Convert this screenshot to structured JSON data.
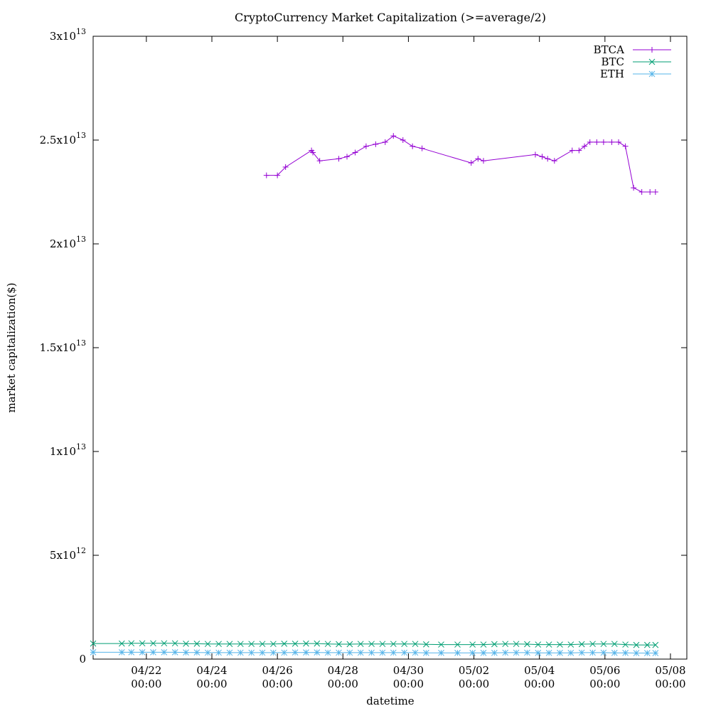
{
  "chart_data": {
    "type": "line",
    "title": "CryptoCurrency Market Capitalization (>=average/2)",
    "xlabel": "datetime",
    "ylabel": "market capitalization($)",
    "ylim": [
      0,
      30000000000000
    ],
    "xlim": [
      "2021-04-20 09:00",
      "2021-05-08 12:00"
    ],
    "grid": false,
    "legend_position": "top-right",
    "x_ticks": [
      {
        "value": "2021-04-22 00:00",
        "line1": "04/22",
        "line2": "00:00"
      },
      {
        "value": "2021-04-24 00:00",
        "line1": "04/24",
        "line2": "00:00"
      },
      {
        "value": "2021-04-26 00:00",
        "line1": "04/26",
        "line2": "00:00"
      },
      {
        "value": "2021-04-28 00:00",
        "line1": "04/28",
        "line2": "00:00"
      },
      {
        "value": "2021-04-30 00:00",
        "line1": "04/30",
        "line2": "00:00"
      },
      {
        "value": "2021-05-02 00:00",
        "line1": "05/02",
        "line2": "00:00"
      },
      {
        "value": "2021-05-04 00:00",
        "line1": "05/04",
        "line2": "00:00"
      },
      {
        "value": "2021-05-06 00:00",
        "line1": "05/06",
        "line2": "00:00"
      },
      {
        "value": "2021-05-08 00:00",
        "line1": "05/08",
        "line2": "00:00"
      }
    ],
    "y_ticks": [
      {
        "value": 0,
        "mant": "0",
        "exp": ""
      },
      {
        "value": 5000000000000,
        "mant": "5x10",
        "exp": "12"
      },
      {
        "value": 10000000000000,
        "mant": "1x10",
        "exp": "13"
      },
      {
        "value": 15000000000000,
        "mant": "1.5x10",
        "exp": "13"
      },
      {
        "value": 20000000000000,
        "mant": "2x10",
        "exp": "13"
      },
      {
        "value": 25000000000000,
        "mant": "2.5x10",
        "exp": "13"
      },
      {
        "value": 30000000000000,
        "mant": "3x10",
        "exp": "13"
      }
    ],
    "series": [
      {
        "name": "BTCA",
        "color": "#9400d3",
        "marker": "plus",
        "x": [
          "2021-04-25 16:00",
          "2021-04-26 00:00",
          "2021-04-26 06:00",
          "2021-04-27 01:00",
          "2021-04-27 02:00",
          "2021-04-27 07:00",
          "2021-04-27 21:00",
          "2021-04-28 03:00",
          "2021-04-28 09:00",
          "2021-04-28 17:00",
          "2021-04-29 00:00",
          "2021-04-29 07:00",
          "2021-04-29 13:00",
          "2021-04-29 20:00",
          "2021-04-30 03:00",
          "2021-04-30 10:00",
          "2021-05-01 22:00",
          "2021-05-02 03:00",
          "2021-05-02 07:00",
          "2021-05-03 21:00",
          "2021-05-04 02:00",
          "2021-05-04 06:00",
          "2021-05-04 11:00",
          "2021-05-05 00:00",
          "2021-05-05 05:00",
          "2021-05-05 09:00",
          "2021-05-05 13:00",
          "2021-05-05 18:00",
          "2021-05-05 23:00",
          "2021-05-06 05:00",
          "2021-05-06 10:00",
          "2021-05-06 15:00",
          "2021-05-06 21:00",
          "2021-05-07 03:00",
          "2021-05-07 09:00",
          "2021-05-07 13:00"
        ],
        "y": [
          23300000000000,
          23300000000000,
          23700000000000,
          24500000000000,
          24400000000000,
          24000000000000,
          24100000000000,
          24200000000000,
          24400000000000,
          24700000000000,
          24800000000000,
          24900000000000,
          25200000000000,
          25000000000000,
          24700000000000,
          24600000000000,
          23900000000000,
          24100000000000,
          24000000000000,
          24300000000000,
          24200000000000,
          24100000000000,
          24000000000000,
          24500000000000,
          24500000000000,
          24700000000000,
          24900000000000,
          24900000000000,
          24900000000000,
          24900000000000,
          24900000000000,
          24700000000000,
          22700000000000,
          22500000000000,
          22500000000000,
          22500000000000
        ]
      },
      {
        "name": "BTC",
        "color": "#009e73",
        "marker": "cross",
        "x": [
          "2021-04-20 09:00",
          "2021-04-21 06:00",
          "2021-04-21 13:00",
          "2021-04-21 21:00",
          "2021-04-22 05:00",
          "2021-04-22 13:00",
          "2021-04-22 21:00",
          "2021-04-23 05:00",
          "2021-04-23 13:00",
          "2021-04-23 21:00",
          "2021-04-24 05:00",
          "2021-04-24 13:00",
          "2021-04-24 21:00",
          "2021-04-25 05:00",
          "2021-04-25 13:00",
          "2021-04-25 21:00",
          "2021-04-26 05:00",
          "2021-04-26 13:00",
          "2021-04-26 21:00",
          "2021-04-27 05:00",
          "2021-04-27 13:00",
          "2021-04-27 21:00",
          "2021-04-28 05:00",
          "2021-04-28 13:00",
          "2021-04-28 21:00",
          "2021-04-29 05:00",
          "2021-04-29 13:00",
          "2021-04-29 21:00",
          "2021-04-30 05:00",
          "2021-04-30 13:00",
          "2021-05-01 00:00",
          "2021-05-01 12:00",
          "2021-05-01 23:00",
          "2021-05-02 07:00",
          "2021-05-02 15:00",
          "2021-05-02 23:00",
          "2021-05-03 07:00",
          "2021-05-03 15:00",
          "2021-05-03 23:00",
          "2021-05-04 07:00",
          "2021-05-04 15:00",
          "2021-05-04 23:00",
          "2021-05-05 07:00",
          "2021-05-05 15:00",
          "2021-05-05 23:00",
          "2021-05-06 07:00",
          "2021-05-06 15:00",
          "2021-05-06 23:00",
          "2021-05-07 07:00",
          "2021-05-07 13:00"
        ],
        "y": [
          750000000000,
          750000000000,
          760000000000,
          760000000000,
          760000000000,
          760000000000,
          760000000000,
          740000000000,
          740000000000,
          730000000000,
          730000000000,
          730000000000,
          730000000000,
          730000000000,
          730000000000,
          730000000000,
          740000000000,
          740000000000,
          750000000000,
          750000000000,
          730000000000,
          720000000000,
          720000000000,
          730000000000,
          730000000000,
          730000000000,
          730000000000,
          730000000000,
          730000000000,
          710000000000,
          700000000000,
          700000000000,
          700000000000,
          700000000000,
          720000000000,
          730000000000,
          730000000000,
          720000000000,
          700000000000,
          700000000000,
          700000000000,
          700000000000,
          720000000000,
          730000000000,
          730000000000,
          730000000000,
          700000000000,
          680000000000,
          680000000000,
          680000000000
        ]
      },
      {
        "name": "ETH",
        "color": "#56b4e9",
        "marker": "star",
        "x": [
          "2021-04-20 09:00",
          "2021-04-21 06:00",
          "2021-04-21 13:00",
          "2021-04-21 21:00",
          "2021-04-22 05:00",
          "2021-04-22 13:00",
          "2021-04-22 21:00",
          "2021-04-23 05:00",
          "2021-04-23 13:00",
          "2021-04-23 21:00",
          "2021-04-24 05:00",
          "2021-04-24 13:00",
          "2021-04-24 21:00",
          "2021-04-25 05:00",
          "2021-04-25 13:00",
          "2021-04-25 21:00",
          "2021-04-26 05:00",
          "2021-04-26 13:00",
          "2021-04-26 21:00",
          "2021-04-27 05:00",
          "2021-04-27 13:00",
          "2021-04-27 21:00",
          "2021-04-28 05:00",
          "2021-04-28 13:00",
          "2021-04-28 21:00",
          "2021-04-29 05:00",
          "2021-04-29 13:00",
          "2021-04-29 21:00",
          "2021-04-30 05:00",
          "2021-04-30 13:00",
          "2021-05-01 00:00",
          "2021-05-01 12:00",
          "2021-05-01 23:00",
          "2021-05-02 07:00",
          "2021-05-02 15:00",
          "2021-05-02 23:00",
          "2021-05-03 07:00",
          "2021-05-03 15:00",
          "2021-05-03 23:00",
          "2021-05-04 07:00",
          "2021-05-04 15:00",
          "2021-05-04 23:00",
          "2021-05-05 07:00",
          "2021-05-05 15:00",
          "2021-05-05 23:00",
          "2021-05-06 07:00",
          "2021-05-06 15:00",
          "2021-05-06 23:00",
          "2021-05-07 07:00",
          "2021-05-07 13:00"
        ],
        "y": [
          330000000000,
          330000000000,
          330000000000,
          330000000000,
          330000000000,
          330000000000,
          330000000000,
          320000000000,
          320000000000,
          310000000000,
          310000000000,
          310000000000,
          310000000000,
          310000000000,
          310000000000,
          310000000000,
          310000000000,
          320000000000,
          320000000000,
          320000000000,
          310000000000,
          310000000000,
          310000000000,
          310000000000,
          310000000000,
          310000000000,
          310000000000,
          310000000000,
          310000000000,
          300000000000,
          300000000000,
          300000000000,
          300000000000,
          300000000000,
          300000000000,
          310000000000,
          310000000000,
          310000000000,
          300000000000,
          300000000000,
          300000000000,
          300000000000,
          310000000000,
          310000000000,
          310000000000,
          300000000000,
          300000000000,
          290000000000,
          290000000000,
          290000000000
        ]
      }
    ]
  }
}
